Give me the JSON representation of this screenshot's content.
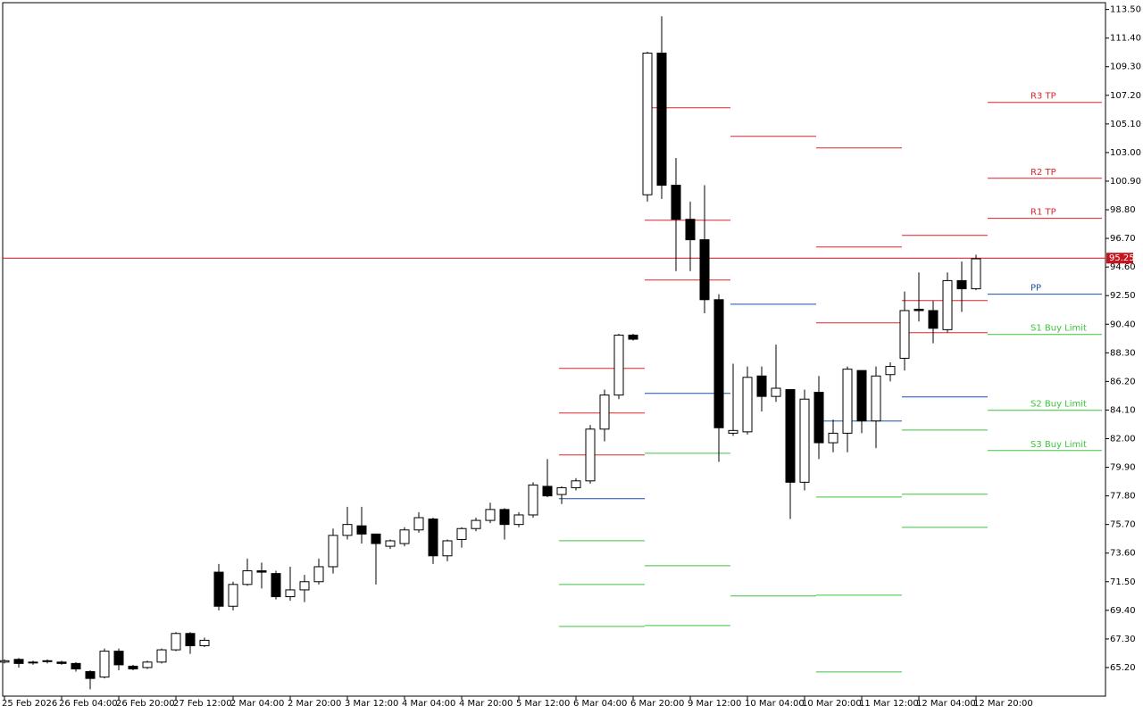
{
  "chart_data": {
    "type": "candlestick",
    "categories": [
      "25 Feb 2026",
      null,
      null,
      null,
      "26 Feb 04:00",
      null,
      null,
      null,
      "26 Feb 20:00",
      null,
      null,
      null,
      "27 Feb 12:00",
      null,
      null,
      null,
      "2 Mar 04:00",
      null,
      null,
      null,
      "2 Mar 20:00",
      null,
      null,
      null,
      "3 Mar 12:00",
      null,
      null,
      null,
      "4 Mar 04:00",
      null,
      null,
      null,
      "4 Mar 20:00",
      null,
      null,
      null,
      "5 Mar 12:00",
      null,
      null,
      null,
      "6 Mar 04:00",
      null,
      null,
      null,
      "6 Mar 20:00",
      null,
      null,
      null,
      "9 Mar 12:00",
      null,
      null,
      null,
      "10 Mar 04:00",
      null,
      null,
      null,
      "10 Mar 20:00",
      null,
      null,
      null,
      "11 Mar 12:00",
      null,
      null,
      null,
      "12 Mar 04:00",
      null,
      null,
      null,
      "12 Mar 20:00"
    ],
    "open": [
      65.6,
      65.8,
      65.6,
      65.7,
      65.6,
      65.5,
      64.9,
      64.5,
      66.4,
      65.3,
      65.2,
      65.6,
      66.5,
      67.7,
      66.8,
      72.2,
      69.7,
      71.3,
      72.3,
      72.1,
      70.4,
      70.9,
      71.5,
      72.6,
      74.9,
      75.6,
      75.0,
      74.1,
      74.3,
      75.3,
      76.1,
      73.4,
      74.6,
      75.4,
      76.0,
      76.8,
      75.7,
      76.4,
      78.5,
      77.9,
      78.4,
      78.9,
      82.7,
      85.2,
      89.6,
      99.9,
      110.3,
      100.6,
      98.1,
      96.6,
      92.2,
      82.4,
      82.5,
      86.6,
      85.1,
      85.6,
      78.8,
      85.4,
      81.7,
      82.4,
      87.0,
      83.3,
      86.7,
      87.9,
      91.5,
      91.4,
      90.0,
      93.6,
      93.0
    ],
    "high": [
      65.8,
      65.9,
      65.7,
      65.8,
      65.7,
      65.6,
      65.0,
      66.6,
      66.6,
      65.4,
      65.7,
      66.6,
      67.8,
      67.8,
      67.4,
      72.8,
      71.5,
      73.2,
      72.9,
      72.3,
      72.6,
      72.0,
      73.2,
      75.4,
      77.0,
      77.0,
      74.9,
      74.6,
      75.5,
      76.6,
      76.2,
      74.6,
      75.5,
      76.2,
      77.3,
      76.9,
      76.6,
      78.8,
      80.5,
      78.5,
      79.1,
      83.0,
      85.6,
      89.7,
      89.7,
      110.4,
      113.0,
      102.6,
      99.4,
      100.6,
      92.6,
      87.5,
      87.3,
      87.3,
      88.9,
      85.6,
      85.6,
      86.6,
      83.4,
      87.3,
      87.0,
      87.3,
      87.6,
      92.8,
      94.2,
      92.1,
      94.2,
      95.0,
      95.5
    ],
    "low": [
      65.5,
      65.2,
      65.4,
      65.5,
      65.4,
      64.9,
      63.6,
      64.4,
      65.0,
      65.0,
      65.1,
      65.5,
      66.4,
      66.2,
      66.7,
      69.4,
      69.4,
      71.2,
      71.0,
      70.2,
      70.1,
      70.0,
      71.3,
      72.1,
      74.6,
      74.3,
      71.3,
      73.9,
      74.1,
      75.1,
      72.8,
      73.0,
      74.0,
      75.2,
      75.8,
      74.6,
      75.5,
      76.2,
      77.7,
      77.2,
      78.2,
      78.7,
      81.8,
      84.9,
      89.2,
      99.4,
      99.6,
      94.3,
      94.3,
      91.2,
      80.3,
      82.2,
      82.3,
      84.0,
      84.7,
      76.1,
      78.2,
      80.5,
      81.0,
      81.0,
      82.4,
      81.3,
      86.2,
      87.0,
      90.6,
      89.0,
      89.8,
      91.3,
      92.9
    ],
    "close": [
      65.7,
      65.5,
      65.6,
      65.7,
      65.5,
      65.1,
      64.4,
      66.4,
      65.4,
      65.1,
      65.6,
      66.5,
      67.7,
      66.8,
      67.2,
      69.7,
      71.3,
      72.3,
      72.2,
      70.4,
      70.9,
      71.5,
      72.6,
      74.9,
      75.7,
      75.0,
      74.3,
      74.5,
      75.3,
      76.2,
      73.4,
      74.5,
      75.4,
      76.0,
      76.8,
      75.7,
      76.4,
      78.6,
      77.8,
      78.4,
      78.9,
      82.7,
      85.2,
      89.6,
      89.3,
      110.3,
      100.6,
      98.1,
      96.6,
      92.2,
      82.8,
      82.6,
      86.5,
      85.1,
      85.7,
      78.8,
      84.9,
      81.7,
      82.4,
      87.1,
      83.3,
      86.6,
      87.3,
      91.4,
      91.4,
      90.1,
      93.6,
      93.0,
      95.2
    ],
    "up_color": "#ffffff",
    "down_color": "#000000",
    "wick_color": "#000000",
    "ylim": [
      63.1,
      114.0
    ],
    "yticks": [
      {
        "value": 113.5,
        "label": "113.50"
      },
      {
        "value": 111.4,
        "label": "111.40"
      },
      {
        "value": 109.3,
        "label": "109.30"
      },
      {
        "value": 107.2,
        "label": "107.20"
      },
      {
        "value": 105.1,
        "label": "105.10"
      },
      {
        "value": 103,
        "label": "103.00"
      },
      {
        "value": 100.9,
        "label": "100.90"
      },
      {
        "value": 98.8,
        "label": "98.80"
      },
      {
        "value": 96.7,
        "label": "96.70"
      },
      {
        "value": 94.6,
        "label": "94.60"
      },
      {
        "value": 92.5,
        "label": "92.50"
      },
      {
        "value": 90.4,
        "label": "90.40"
      },
      {
        "value": 88.3,
        "label": "88.30"
      },
      {
        "value": 86.2,
        "label": "86.20"
      },
      {
        "value": 84.1,
        "label": "84.10"
      },
      {
        "value": 82,
        "label": "82.00"
      },
      {
        "value": 79.9,
        "label": "79.90"
      },
      {
        "value": 77.8,
        "label": "77.80"
      },
      {
        "value": 75.7,
        "label": "75.70"
      },
      {
        "value": 73.6,
        "label": "73.60"
      },
      {
        "value": 71.5,
        "label": "71.50"
      },
      {
        "value": 69.4,
        "label": "69.40"
      },
      {
        "value": 67.3,
        "label": "67.30"
      },
      {
        "value": 65.2,
        "label": "65.20"
      }
    ],
    "last_price": 95.25,
    "last_price_color": "#c8141e",
    "resistance_color": "#e0232a",
    "pivot_color": "#1f4fa8",
    "support_color": "#3cc43c",
    "pivots": [
      {
        "resistance": [
          80.8,
          83.88,
          87.16
        ],
        "pivot": 77.59,
        "support": [
          74.51,
          71.3,
          68.22
        ]
      },
      {
        "resistance": [
          93.64,
          98.03,
          106.29
        ],
        "pivot": 85.32,
        "support": [
          80.93,
          72.67,
          68.28
        ]
      },
      {
        "resistance": [
          104.19
        ],
        "pivot": 91.87,
        "support": [
          70.45
        ]
      },
      {
        "resistance": [
          90.5,
          96.07,
          103.34
        ],
        "pivot": 83.29,
        "support": [
          77.72,
          70.51,
          64.88
        ]
      },
      {
        "resistance": [
          89.78,
          92.14,
          96.92
        ],
        "pivot": 85.06,
        "support": [
          82.63,
          77.92,
          75.49
        ]
      },
      {
        "resistance": [
          98.17,
          101.11,
          106.68
        ],
        "resistance_labels": [
          "R1 TP",
          "R2 TP",
          "R3 TP"
        ],
        "pivot": 92.6,
        "pivot_label": "PP",
        "support": [
          89.65,
          84.08,
          81.13
        ],
        "support_labels": [
          "S1 Buy Limit",
          "S2 Buy Limit",
          "S3 Buy Limit"
        ]
      }
    ]
  }
}
